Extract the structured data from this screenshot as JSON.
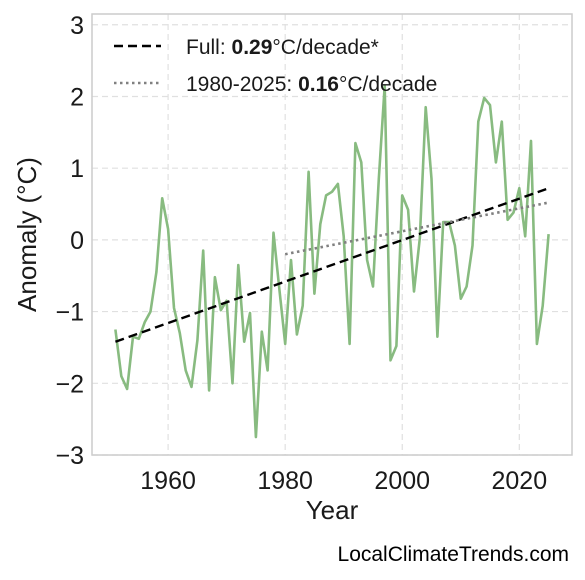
{
  "chart_data": {
    "type": "line",
    "xlabel": "Year",
    "ylabel": "Anomaly (°C)",
    "xlim": [
      1947,
      2029
    ],
    "ylim": [
      -3,
      3.15
    ],
    "xticks": [
      1960,
      1980,
      2000,
      2020
    ],
    "yticks": [
      -3,
      -2,
      -1,
      0,
      1,
      2,
      3
    ],
    "ytick_labels": [
      "−3",
      "−2",
      "−1",
      "0",
      "1",
      "2",
      "3"
    ],
    "grid": true,
    "legend_position": "top-left",
    "watermark": "LocalClimateTrends.com",
    "series": [
      {
        "color": "#88bb80",
        "x": [
          1951,
          1952,
          1953,
          1954,
          1955,
          1956,
          1957,
          1958,
          1959,
          1960,
          1961,
          1962,
          1963,
          1964,
          1965,
          1966,
          1967,
          1968,
          1969,
          1970,
          1971,
          1972,
          1973,
          1974,
          1975,
          1976,
          1977,
          1978,
          1979,
          1980,
          1981,
          1982,
          1983,
          1984,
          1985,
          1986,
          1987,
          1988,
          1989,
          1990,
          1991,
          1992,
          1993,
          1994,
          1995,
          1996,
          1997,
          1998,
          1999,
          2000,
          2001,
          2002,
          2003,
          2004,
          2005,
          2006,
          2007,
          2008,
          2009,
          2010,
          2011,
          2012,
          2013,
          2014,
          2015,
          2016,
          2017,
          2018,
          2019,
          2020,
          2021,
          2022,
          2023,
          2024,
          2025
        ],
        "y": [
          -1.25,
          -1.9,
          -2.08,
          -1.35,
          -1.38,
          -1.15,
          -1.0,
          -0.45,
          0.58,
          0.15,
          -0.95,
          -1.3,
          -1.82,
          -2.05,
          -1.4,
          -0.15,
          -2.1,
          -0.52,
          -0.98,
          -0.85,
          -2.0,
          -0.35,
          -1.42,
          -1.02,
          -2.75,
          -1.28,
          -1.82,
          0.1,
          -0.68,
          -1.45,
          -0.28,
          -1.32,
          -0.92,
          0.95,
          -0.75,
          0.22,
          0.62,
          0.67,
          0.78,
          0.05,
          -1.45,
          1.35,
          1.08,
          -0.28,
          -0.65,
          0.85,
          2.15,
          -1.68,
          -1.48,
          0.62,
          0.42,
          -0.72,
          0.02,
          1.85,
          0.85,
          -1.35,
          0.25,
          0.25,
          -0.08,
          -0.82,
          -0.65,
          -0.08,
          1.65,
          1.98,
          1.88,
          1.08,
          1.65,
          0.28,
          0.38,
          0.72,
          0.05,
          1.38,
          -1.45,
          -0.92,
          0.08
        ]
      },
      {
        "name": "Full: 0.29°C/decade*",
        "label_prefix": "Full: ",
        "label_value": "0.29",
        "label_suffix": "°C/decade*",
        "style": "dashed",
        "color": "#000000",
        "x": [
          1951,
          2025
        ],
        "y": [
          -1.42,
          0.72
        ]
      },
      {
        "name": "1980-2025: 0.16°C/decade",
        "label_prefix": "1980-2025: ",
        "label_value": "0.16",
        "label_suffix": "°C/decade",
        "style": "dotted",
        "color": "#808080",
        "x": [
          1980,
          2025
        ],
        "y": [
          -0.2,
          0.52
        ]
      }
    ]
  }
}
